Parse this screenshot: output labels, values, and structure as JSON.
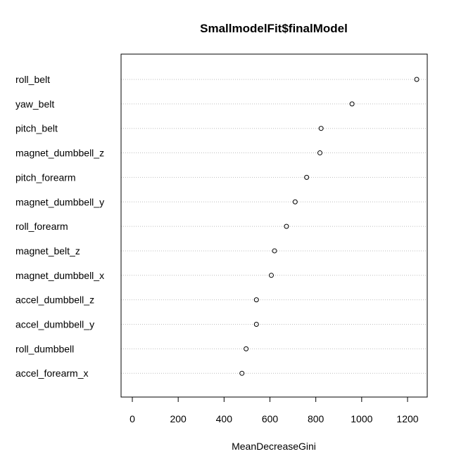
{
  "chart_data": {
    "type": "scatter",
    "title": "SmallmodelFit$finalModel",
    "xlabel": "MeanDecreaseGini",
    "ylabel": "",
    "xlim": [
      0,
      1300
    ],
    "xticks": [
      0,
      200,
      400,
      600,
      800,
      1000,
      1200
    ],
    "categories": [
      "roll_belt",
      "yaw_belt",
      "pitch_belt",
      "magnet_dumbbell_z",
      "pitch_forearm",
      "magnet_dumbbell_y",
      "roll_forearm",
      "magnet_belt_z",
      "magnet_dumbbell_x",
      "accel_dumbbell_z",
      "accel_dumbbell_y",
      "roll_dumbbell",
      "accel_forearm_x"
    ],
    "values": [
      1240,
      958,
      823,
      818,
      760,
      710,
      672,
      620,
      606,
      541,
      541,
      496,
      478
    ],
    "grid": "horizontal dotted",
    "legend": "none"
  }
}
